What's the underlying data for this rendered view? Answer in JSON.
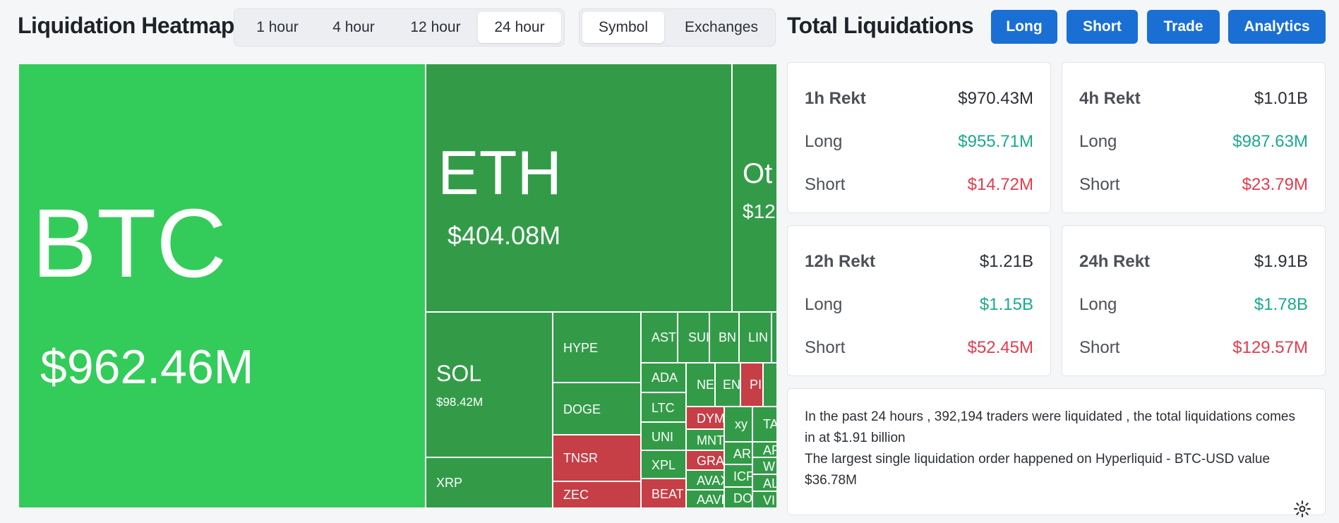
{
  "header": {
    "title": "Liquidation Heatmap",
    "time_tabs": [
      "1 hour",
      "4 hour",
      "12 hour",
      "24 hour"
    ],
    "active_time_tab": "24 hour",
    "view_tabs": [
      "Symbol",
      "Exchanges"
    ],
    "active_view_tab": "Symbol"
  },
  "right_header": {
    "title": "Total Liquidations",
    "buttons": [
      "Long",
      "Short",
      "Trade",
      "Analytics"
    ]
  },
  "treemap": {
    "cells": [
      {
        "symbol": "BTC",
        "value": "$962.46M",
        "color": "green-bright"
      },
      {
        "symbol": "ETH",
        "value": "$404.08M",
        "color": "green"
      },
      {
        "symbol": "Ot",
        "value": "$12",
        "color": "green"
      },
      {
        "symbol": "SOL",
        "value": "$98.42M",
        "color": "green"
      },
      {
        "symbol": "XRP",
        "value": "",
        "color": "green"
      },
      {
        "symbol": "HYPE",
        "value": "",
        "color": "green"
      },
      {
        "symbol": "DOGE",
        "value": "",
        "color": "green"
      },
      {
        "symbol": "TNSR",
        "value": "",
        "color": "red"
      },
      {
        "symbol": "ZEC",
        "value": "",
        "color": "red"
      },
      {
        "symbol": "AST",
        "value": "",
        "color": "green"
      },
      {
        "symbol": "SUI",
        "value": "",
        "color": "green"
      },
      {
        "symbol": "BN",
        "value": "",
        "color": "green"
      },
      {
        "symbol": "LIN",
        "value": "",
        "color": "green"
      },
      {
        "symbol": "ADA",
        "value": "",
        "color": "green"
      },
      {
        "symbol": "NE",
        "value": "",
        "color": "green"
      },
      {
        "symbol": "EN",
        "value": "",
        "color": "green"
      },
      {
        "symbol": "PI",
        "value": "",
        "color": "red"
      },
      {
        "symbol": "LTC",
        "value": "",
        "color": "green"
      },
      {
        "symbol": "DYM",
        "value": "",
        "color": "red"
      },
      {
        "symbol": "UNI",
        "value": "",
        "color": "green"
      },
      {
        "symbol": "MNT",
        "value": "",
        "color": "green"
      },
      {
        "symbol": "XPL",
        "value": "",
        "color": "green"
      },
      {
        "symbol": "GRAS",
        "value": "",
        "color": "red"
      },
      {
        "symbol": "AVAX",
        "value": "",
        "color": "green"
      },
      {
        "symbol": "BEAT",
        "value": "",
        "color": "red"
      },
      {
        "symbol": "AAVE",
        "value": "",
        "color": "green"
      },
      {
        "symbol": "xy",
        "value": "",
        "color": "green"
      },
      {
        "symbol": "TA",
        "value": "",
        "color": "green"
      },
      {
        "symbol": "AR",
        "value": "",
        "color": "green"
      },
      {
        "symbol": "AP",
        "value": "",
        "color": "green"
      },
      {
        "symbol": "W",
        "value": "",
        "color": "green"
      },
      {
        "symbol": "ICP",
        "value": "",
        "color": "green"
      },
      {
        "symbol": "AL",
        "value": "",
        "color": "green"
      },
      {
        "symbol": "DO",
        "value": "",
        "color": "green"
      },
      {
        "symbol": "VI",
        "value": "",
        "color": "green"
      }
    ]
  },
  "stats": {
    "cards": [
      {
        "label": "1h Rekt",
        "total": "$970.43M",
        "long_label": "Long",
        "long": "$955.71M",
        "short_label": "Short",
        "short": "$14.72M"
      },
      {
        "label": "4h Rekt",
        "total": "$1.01B",
        "long_label": "Long",
        "long": "$987.63M",
        "short_label": "Short",
        "short": "$23.79M"
      },
      {
        "label": "12h Rekt",
        "total": "$1.21B",
        "long_label": "Long",
        "long": "$1.15B",
        "short_label": "Short",
        "short": "$52.45M"
      },
      {
        "label": "24h Rekt",
        "total": "$1.91B",
        "long_label": "Long",
        "long": "$1.78B",
        "short_label": "Short",
        "short": "$129.57M"
      }
    ]
  },
  "summary": {
    "line1": "In the past 24 hours , 392,194 traders were liquidated , the total liquidations comes in at $1.91 billion",
    "line2": "The largest single liquidation order happened on Hyperliquid - BTC-USD value $36.78M"
  },
  "colors": {
    "green": "#339b48",
    "green-bright": "#33cc5a",
    "red": "#c63e46",
    "long": "#1aaa8e",
    "short": "#e23c4d",
    "button_blue": "#1a6fd4"
  },
  "icons": {
    "settings": "gear-icon"
  }
}
